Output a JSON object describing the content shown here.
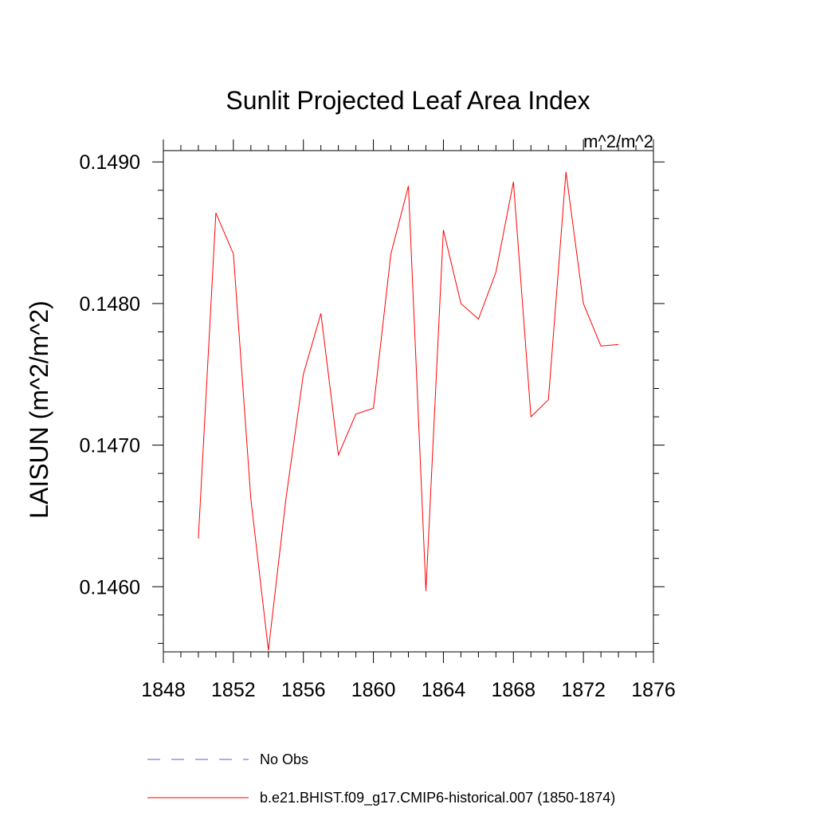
{
  "chart_data": {
    "type": "line",
    "title": "Sunlit Projected Leaf Area Index",
    "units": "m^2/m^2",
    "ylabel": "LAISUN  (m^2/m^2)",
    "xlabel": "",
    "xlim": [
      1848,
      1876
    ],
    "ylim": [
      0.14554,
      0.14908
    ],
    "x_ticks": [
      1848,
      1852,
      1856,
      1860,
      1864,
      1868,
      1872,
      1876
    ],
    "x_tick_labels": [
      "1848",
      "1852",
      "1856",
      "1860",
      "1864",
      "1868",
      "1872",
      "1876"
    ],
    "y_ticks": [
      0.146,
      0.147,
      0.148,
      0.149
    ],
    "y_tick_labels": [
      "0.1460",
      "0.1470",
      "0.1480",
      "0.1490"
    ],
    "grid": false,
    "series": [
      {
        "name": "b.e21.BHIST.f09_g17.CMIP6-historical.007 (1850-1874)",
        "color": "#ff0000",
        "style": "solid",
        "x": [
          1850,
          1851,
          1852,
          1853,
          1854,
          1855,
          1856,
          1857,
          1858,
          1859,
          1860,
          1861,
          1862,
          1863,
          1864,
          1865,
          1866,
          1867,
          1868,
          1869,
          1870,
          1871,
          1872,
          1873,
          1874
        ],
        "y": [
          0.14634,
          0.14864,
          0.14835,
          0.14662,
          0.14555,
          0.14662,
          0.1475,
          0.14793,
          0.14693,
          0.14722,
          0.14726,
          0.14835,
          0.14883,
          0.14597,
          0.14852,
          0.148,
          0.14789,
          0.14822,
          0.14886,
          0.1472,
          0.14732,
          0.14893,
          0.148,
          0.1477,
          0.14771
        ]
      }
    ],
    "legend": {
      "placement": "bottom",
      "entries": [
        {
          "label": "No Obs",
          "color": "#6a5acd",
          "style": "dashed"
        },
        {
          "label": "b.e21.BHIST.f09_g17.CMIP6-historical.007 (1850-1874)",
          "color": "#ff0000",
          "style": "solid"
        }
      ]
    }
  }
}
